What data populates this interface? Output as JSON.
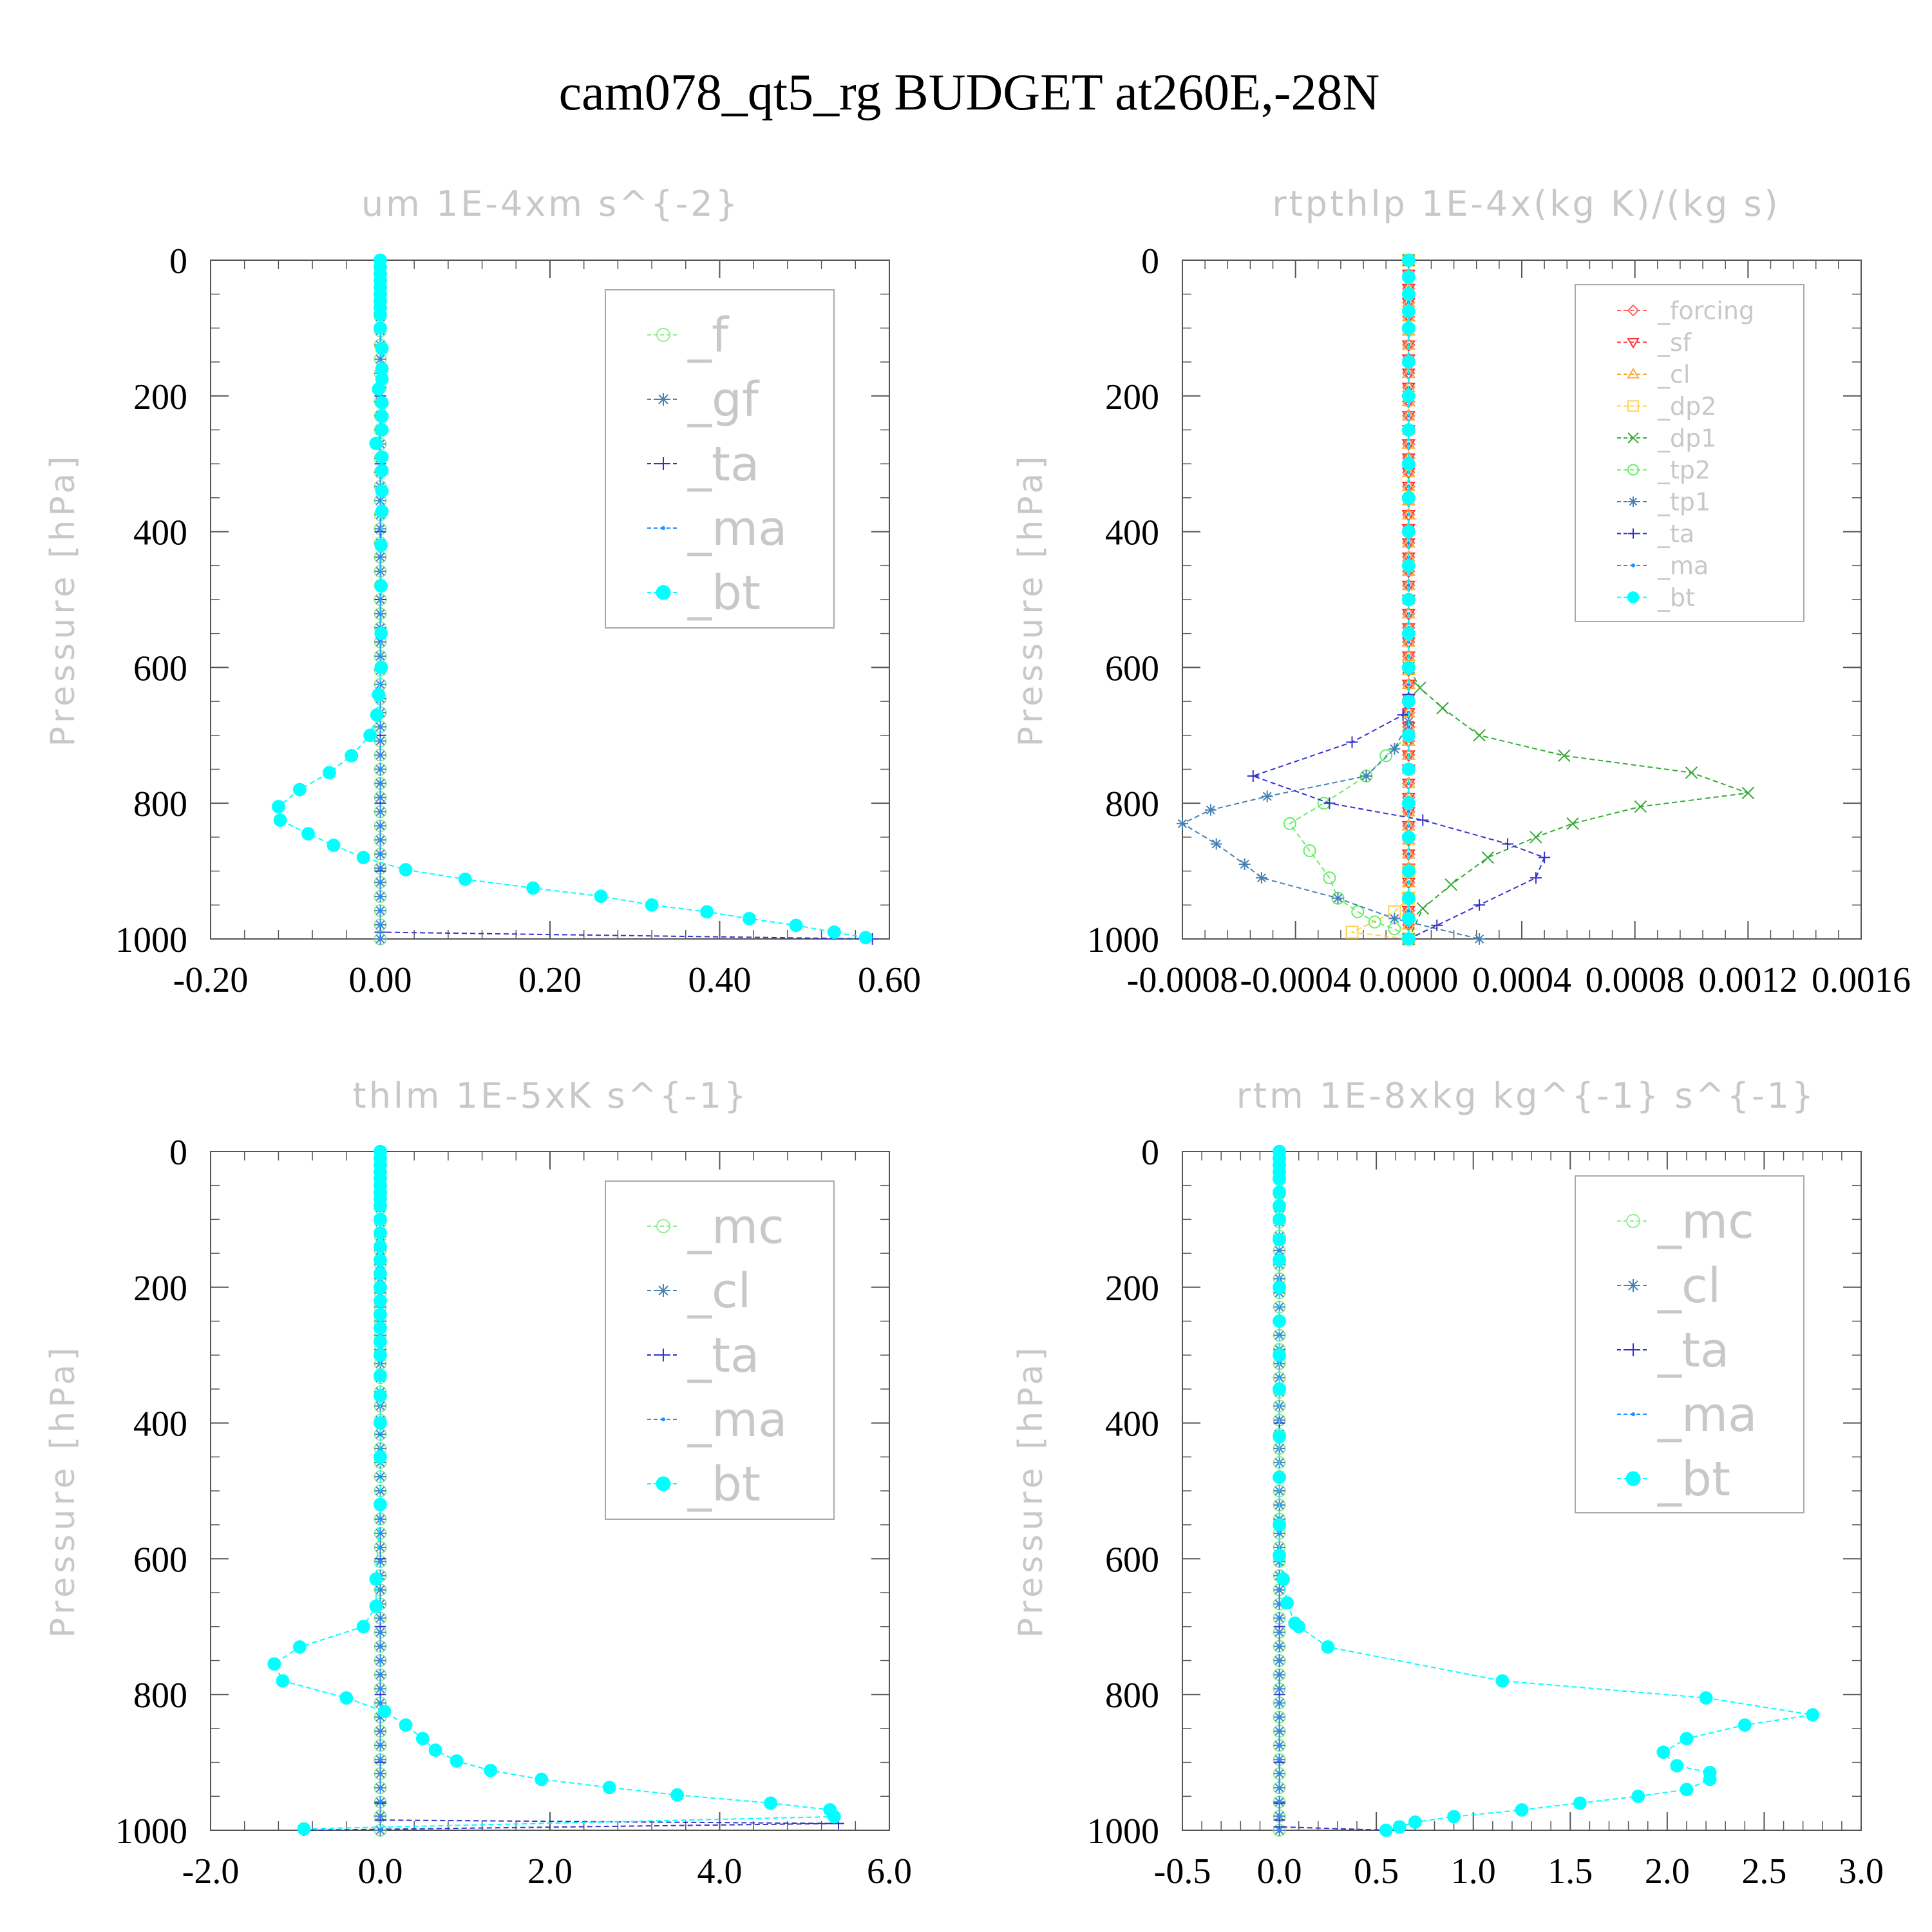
{
  "title": "cam078_qt5_rg  BUDGET at260E,-28N",
  "chart_data": [
    {
      "type": "line",
      "title": "um  1E-4xm s^{-2}",
      "ylabel": "Pressure [hPa]",
      "xlim": [
        -0.2,
        0.6
      ],
      "ylim": [
        0,
        1000
      ],
      "y_inverted": true,
      "xticks": [
        "-0.20",
        "0.00",
        "0.20",
        "0.40",
        "0.60"
      ],
      "yticks": [
        "0",
        "200",
        "400",
        "600",
        "800",
        "1000"
      ],
      "legend_placement": "top-right",
      "series": [
        {
          "name": "_f",
          "color": "#90ee90",
          "marker": "circle",
          "x": [
            0,
            0
          ],
          "y": [
            0,
            1000
          ]
        },
        {
          "name": "_gf",
          "color": "#4682b4",
          "marker": "asterisk",
          "x": [
            0,
            0
          ],
          "y": [
            0,
            1000
          ]
        },
        {
          "name": "_ta",
          "color": "#3333cc",
          "marker": "plus",
          "x": [
            0,
            0,
            0,
            0,
            0,
            0,
            0,
            0,
            0,
            0,
            0,
            0.58
          ],
          "y": [
            0,
            100,
            200,
            300,
            400,
            500,
            600,
            700,
            800,
            900,
            990,
            1000
          ]
        },
        {
          "name": "_ma",
          "color": "#1e90ff",
          "marker": "dot",
          "x": [
            0,
            0
          ],
          "y": [
            0,
            1000
          ]
        },
        {
          "name": "_bt",
          "color": "#00ffff",
          "marker": "filled-circle",
          "x": [
            0,
            0,
            0,
            0,
            0,
            0,
            0,
            0,
            0,
            0,
            0.002,
            0.002,
            0.002,
            -0.002,
            0.002,
            0.002,
            0.002,
            -0.005,
            0.002,
            0.002,
            0.002,
            0.002,
            0.001,
            0.001,
            0.001,
            0.001,
            -0.002,
            -0.004,
            -0.012,
            -0.034,
            -0.06,
            -0.095,
            -0.12,
            -0.118,
            -0.085,
            -0.055,
            -0.02,
            0.03,
            0.1,
            0.18,
            0.26,
            0.32,
            0.385,
            0.435,
            0.49,
            0.535,
            0.572
          ],
          "y": [
            0,
            10,
            20,
            30,
            40,
            50,
            60,
            70,
            80,
            100,
            130,
            160,
            175,
            190,
            210,
            230,
            250,
            270,
            290,
            310,
            340,
            370,
            420,
            480,
            550,
            600,
            640,
            670,
            700,
            730,
            755,
            780,
            805,
            825,
            845,
            862,
            880,
            898,
            912,
            925,
            937,
            950,
            960,
            970,
            980,
            990,
            998
          ]
        }
      ]
    },
    {
      "type": "line",
      "title": "rtpthlp  1E-4x(kg K)/(kg s)",
      "ylabel": "Pressure [hPa]",
      "xlim": [
        -0.0008,
        0.0016
      ],
      "ylim": [
        0,
        1000
      ],
      "y_inverted": true,
      "xticks": [
        "-0.0008",
        "-0.0004",
        "0.0000",
        "0.0004",
        "0.0008",
        "0.0012",
        "0.0016"
      ],
      "yticks": [
        "0",
        "200",
        "400",
        "600",
        "800",
        "1000"
      ],
      "legend_placement": "top-right",
      "series": [
        {
          "name": "_forcing",
          "color": "#ff6666",
          "marker": "diamond",
          "x": [
            0,
            0
          ],
          "y": [
            0,
            1000
          ]
        },
        {
          "name": "_sf",
          "color": "#ff3333",
          "marker": "triangle-down",
          "x": [
            0,
            0
          ],
          "y": [
            0,
            1000
          ]
        },
        {
          "name": "_cl",
          "color": "#ffaa33",
          "marker": "triangle-up",
          "x": [
            0,
            0
          ],
          "y": [
            0,
            1000
          ]
        },
        {
          "name": "_dp2",
          "color": "#ffd24d",
          "marker": "square",
          "x": [
            0,
            0,
            0,
            -5e-05,
            -0.0002,
            0
          ],
          "y": [
            0,
            900,
            940,
            960,
            990,
            1000
          ]
        },
        {
          "name": "_dp1",
          "color": "#33aa33",
          "marker": "cross",
          "x": [
            0,
            0,
            4e-05,
            0.00012,
            0.00025,
            0.00055,
            0.001,
            0.0012,
            0.00082,
            0.00058,
            0.00045,
            0.00028,
            0.00015,
            5e-05,
            0
          ],
          "y": [
            0,
            600,
            630,
            660,
            700,
            730,
            755,
            785,
            805,
            830,
            850,
            880,
            920,
            955,
            1000
          ]
        },
        {
          "name": "_tp2",
          "color": "#66ee66",
          "marker": "circle",
          "x": [
            0,
            0,
            -8e-05,
            -0.00015,
            -0.0003,
            -0.00042,
            -0.00035,
            -0.00028,
            -0.00025,
            -0.00018,
            -0.00012,
            -5e-05,
            0
          ],
          "y": [
            0,
            700,
            730,
            760,
            800,
            830,
            870,
            910,
            940,
            960,
            975,
            985,
            1000
          ]
        },
        {
          "name": "_tp1",
          "color": "#4682b4",
          "marker": "asterisk",
          "x": [
            0,
            0,
            -5e-05,
            -0.00015,
            -0.0005,
            -0.0007,
            -0.0008,
            -0.00068,
            -0.00058,
            -0.00052,
            -0.00025,
            -5e-05,
            0.00025
          ],
          "y": [
            0,
            680,
            720,
            760,
            790,
            810,
            830,
            860,
            890,
            910,
            940,
            970,
            1000
          ]
        },
        {
          "name": "_ta",
          "color": "#3333cc",
          "marker": "plus",
          "x": [
            0,
            0,
            -2e-05,
            -0.0002,
            -0.00055,
            -0.00028,
            5e-05,
            0.00035,
            0.00048,
            0.00045,
            0.00025,
            0.0001,
            0
          ],
          "y": [
            0,
            640,
            670,
            710,
            760,
            800,
            825,
            860,
            880,
            910,
            950,
            980,
            1000
          ]
        },
        {
          "name": "_ma",
          "color": "#1e90ff",
          "marker": "dot",
          "x": [
            0,
            0
          ],
          "y": [
            0,
            1000
          ]
        },
        {
          "name": "_bt",
          "color": "#00ffff",
          "marker": "filled-circle",
          "x": [
            0,
            0,
            0,
            0,
            0,
            0,
            0,
            0,
            0,
            0,
            0,
            0,
            0,
            0,
            0,
            0,
            0,
            0,
            0,
            0,
            0,
            0,
            0,
            0
          ],
          "y": [
            0,
            25,
            50,
            75,
            100,
            150,
            200,
            250,
            300,
            350,
            400,
            450,
            500,
            550,
            600,
            650,
            700,
            750,
            800,
            850,
            900,
            940,
            970,
            1000
          ]
        }
      ]
    },
    {
      "type": "line",
      "title": "thlm  1E-5xK s^{-1}",
      "ylabel": "Pressure [hPa]",
      "xlim": [
        -2.0,
        6.0
      ],
      "ylim": [
        0,
        1000
      ],
      "y_inverted": true,
      "xticks": [
        "-2.0",
        "0.0",
        "2.0",
        "4.0",
        "6.0"
      ],
      "yticks": [
        "0",
        "200",
        "400",
        "600",
        "800",
        "1000"
      ],
      "legend_placement": "top-right",
      "series": [
        {
          "name": "_mc",
          "color": "#90ee90",
          "marker": "circle",
          "x": [
            0,
            0
          ],
          "y": [
            0,
            1000
          ]
        },
        {
          "name": "_cl",
          "color": "#4682b4",
          "marker": "asterisk",
          "x": [
            0,
            0
          ],
          "y": [
            0,
            1000
          ]
        },
        {
          "name": "_ta",
          "color": "#3333cc",
          "marker": "plus",
          "x": [
            0,
            0,
            0,
            0,
            0,
            0,
            0,
            0,
            0,
            5.4,
            -0.9
          ],
          "y": [
            0,
            200,
            400,
            600,
            700,
            800,
            900,
            960,
            985,
            990,
            1000
          ]
        },
        {
          "name": "_ma",
          "color": "#1e90ff",
          "marker": "dot",
          "x": [
            0,
            0
          ],
          "y": [
            0,
            1000
          ]
        },
        {
          "name": "_bt",
          "color": "#00ffff",
          "marker": "filled-circle",
          "x": [
            0,
            0,
            0,
            0,
            0,
            0,
            0,
            0,
            0,
            0,
            0,
            0,
            0,
            0,
            0,
            0,
            0,
            0,
            0,
            0,
            0,
            0,
            0,
            0,
            0,
            -0.05,
            -0.05,
            -0.2,
            -0.95,
            -1.25,
            -1.15,
            -0.4,
            0.05,
            0.3,
            0.5,
            0.65,
            0.9,
            1.3,
            1.9,
            2.7,
            3.5,
            4.6,
            5.3,
            5.35,
            -0.9
          ],
          "y": [
            0,
            10,
            20,
            30,
            40,
            50,
            60,
            70,
            80,
            100,
            120,
            140,
            160,
            180,
            200,
            220,
            240,
            260,
            280,
            300,
            330,
            360,
            400,
            450,
            520,
            630,
            670,
            700,
            730,
            755,
            780,
            805,
            825,
            845,
            865,
            882,
            898,
            912,
            925,
            937,
            948,
            960,
            970,
            980,
            998
          ]
        }
      ]
    },
    {
      "type": "line",
      "title": "rtm  1E-8xkg kg^{-1} s^{-1}",
      "ylabel": "Pressure [hPa]",
      "xlim": [
        -0.5,
        3.0
      ],
      "ylim": [
        0,
        1000
      ],
      "y_inverted": true,
      "xticks": [
        "-0.5",
        "0.0",
        "0.5",
        "1.0",
        "1.5",
        "2.0",
        "2.5",
        "3.0"
      ],
      "yticks": [
        "0",
        "200",
        "400",
        "600",
        "800",
        "1000"
      ],
      "legend_placement": "top-right",
      "series": [
        {
          "name": "_mc",
          "color": "#90ee90",
          "marker": "circle",
          "x": [
            0,
            0
          ],
          "y": [
            0,
            1000
          ]
        },
        {
          "name": "_cl",
          "color": "#4682b4",
          "marker": "asterisk",
          "x": [
            0,
            0
          ],
          "y": [
            0,
            1000
          ]
        },
        {
          "name": "_ta",
          "color": "#3333cc",
          "marker": "plus",
          "x": [
            0,
            0,
            0,
            0,
            0,
            0,
            0,
            0,
            0,
            0,
            0.55
          ],
          "y": [
            0,
            200,
            400,
            600,
            700,
            800,
            900,
            960,
            985,
            995,
            1000
          ]
        },
        {
          "name": "_ma",
          "color": "#1e90ff",
          "marker": "dot",
          "x": [
            0,
            0
          ],
          "y": [
            0,
            1000
          ]
        },
        {
          "name": "_bt",
          "color": "#00ffff",
          "marker": "filled-circle",
          "x": [
            0,
            0,
            0,
            0,
            0,
            0,
            0,
            0,
            0,
            0,
            0,
            0,
            0,
            0,
            0,
            0,
            0,
            0,
            0.02,
            0.04,
            0.08,
            0.1,
            0.25,
            1.15,
            2.2,
            2.75,
            2.4,
            2.1,
            1.98,
            2.05,
            2.22,
            2.22,
            2.1,
            1.85,
            1.55,
            1.25,
            0.9,
            0.7,
            0.62,
            0.55
          ],
          "y": [
            0,
            10,
            20,
            30,
            40,
            60,
            80,
            100,
            130,
            160,
            200,
            250,
            300,
            350,
            420,
            480,
            550,
            595,
            630,
            665,
            695,
            700,
            730,
            780,
            805,
            830,
            845,
            865,
            885,
            905,
            915,
            925,
            940,
            950,
            960,
            970,
            980,
            988,
            995,
            1000
          ]
        }
      ]
    }
  ]
}
